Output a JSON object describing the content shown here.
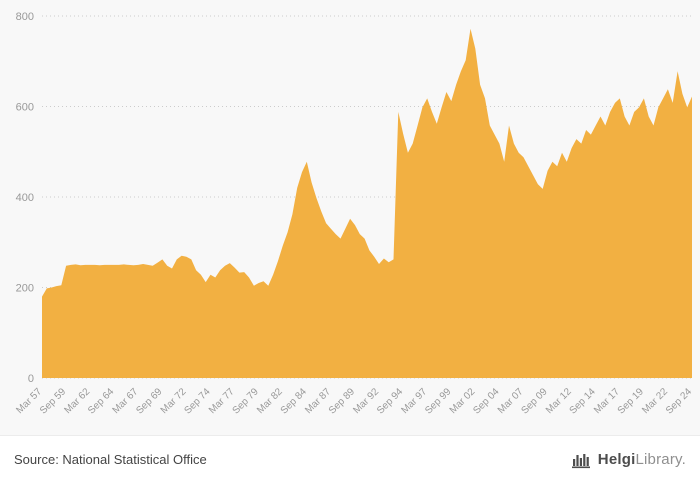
{
  "chart_data": {
    "type": "area",
    "title": "",
    "xlabel": "",
    "ylabel": "",
    "ylim": [
      0,
      800
    ],
    "yticks": [
      0,
      200,
      400,
      600,
      800
    ],
    "color": "#F2B042",
    "grid_color": "#cccccc",
    "tick_label_color": "#999999",
    "legend": "none",
    "grid": "horizontal-dotted",
    "frequency": "semiannual",
    "start": "Mar 1957",
    "end": "Sep 2024",
    "tick_step": 5,
    "tick_labels": [
      "Mar 57",
      "Sep 59",
      "Mar 62",
      "Sep 64",
      "Mar 67",
      "Sep 69",
      "Mar 72",
      "Sep 74",
      "Mar 77",
      "Sep 79",
      "Mar 82",
      "Sep 84",
      "Mar 87",
      "Sep 89",
      "Mar 92",
      "Sep 94",
      "Mar 97",
      "Sep 99",
      "Mar 02",
      "Sep 04",
      "Mar 07",
      "Sep 09",
      "Mar 12",
      "Sep 14",
      "Mar 17",
      "Sep 19",
      "Mar 22",
      "Sep 24"
    ],
    "values": [
      180,
      198,
      200,
      203,
      205,
      248,
      250,
      251,
      249,
      250,
      250,
      250,
      249,
      250,
      250,
      250,
      250,
      251,
      250,
      249,
      250,
      252,
      250,
      248,
      255,
      262,
      248,
      242,
      262,
      270,
      268,
      262,
      238,
      228,
      212,
      228,
      222,
      238,
      248,
      254,
      244,
      233,
      234,
      222,
      204,
      210,
      214,
      204,
      228,
      258,
      292,
      322,
      362,
      420,
      455,
      478,
      432,
      398,
      368,
      342,
      330,
      318,
      308,
      330,
      352,
      338,
      318,
      308,
      282,
      268,
      252,
      264,
      256,
      262,
      588,
      540,
      498,
      518,
      558,
      598,
      618,
      588,
      562,
      598,
      632,
      612,
      648,
      678,
      702,
      772,
      728,
      648,
      618,
      558,
      538,
      518,
      478,
      558,
      518,
      498,
      488,
      468,
      448,
      428,
      418,
      458,
      478,
      468,
      498,
      478,
      508,
      528,
      518,
      548,
      538,
      558,
      578,
      558,
      588,
      608,
      618,
      578,
      558,
      588,
      598,
      618,
      578,
      558,
      598,
      618,
      638,
      608,
      678,
      628,
      598,
      622
    ]
  },
  "footer": {
    "source": "Source: National Statistical Office",
    "logo": {
      "part1": "Helgi",
      "part2": "Library",
      "suffix": "."
    }
  }
}
